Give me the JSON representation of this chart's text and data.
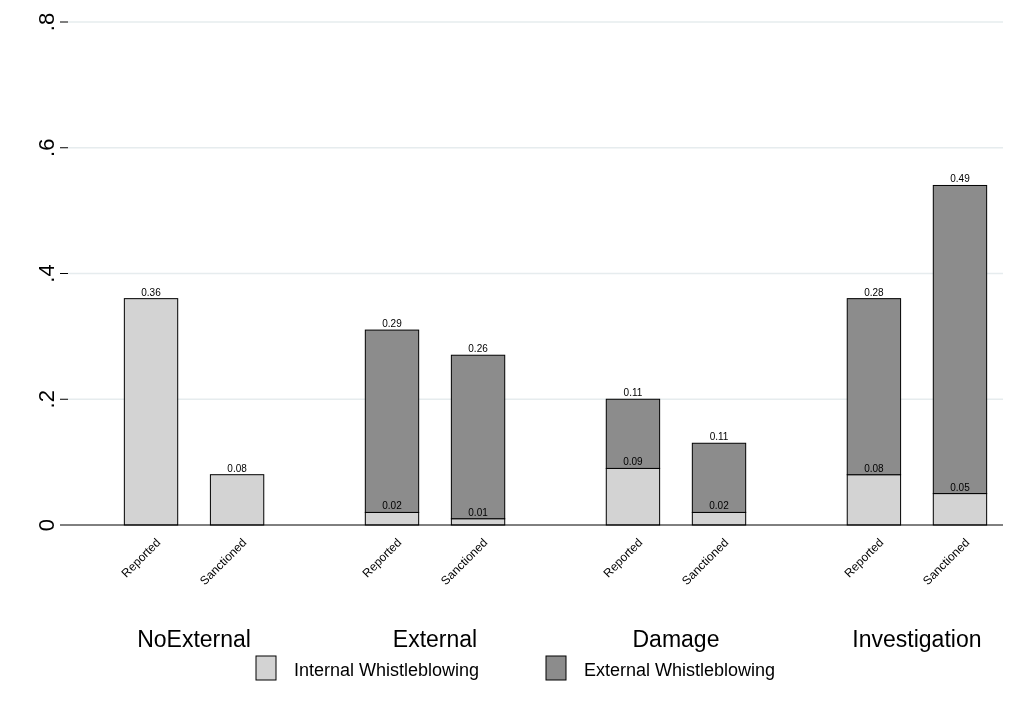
{
  "chart_data": {
    "type": "bar",
    "stacked": true,
    "categories": [
      "Reported",
      "Sanctioned",
      "Reported",
      "Sanctioned",
      "Reported",
      "Sanctioned",
      "Reported",
      "Sanctioned"
    ],
    "series": [
      {
        "name": "Internal Whistleblowing",
        "color": "#d3d3d3",
        "values": [
          0.36,
          0.08,
          0.02,
          0.01,
          0.09,
          0.02,
          0.08,
          0.05
        ]
      },
      {
        "name": "External Whistleblowing",
        "color": "#8c8c8c",
        "values": [
          null,
          null,
          0.29,
          0.26,
          0.11,
          0.11,
          0.28,
          0.49
        ]
      }
    ],
    "annotations": [
      "NoExternal",
      "External",
      "Damage",
      "Investigation"
    ],
    "ylim": [
      0,
      0.8
    ],
    "yticks": [
      {
        "value": 0,
        "label": "0"
      },
      {
        "value": 0.2,
        "label": ".2"
      },
      {
        "value": 0.4,
        "label": ".4"
      },
      {
        "value": 0.6,
        "label": ".6"
      },
      {
        "value": 0.8,
        "label": ".8"
      }
    ],
    "grid": "y",
    "legend": "bottom",
    "data_labels": true
  }
}
